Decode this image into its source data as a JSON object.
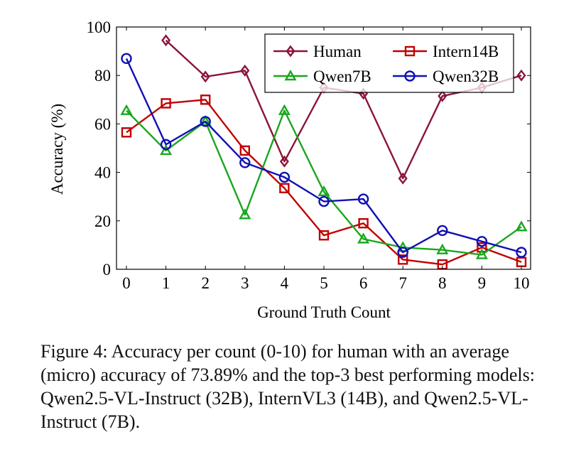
{
  "chart_data": {
    "type": "line",
    "xlabel": "Ground Truth Count",
    "ylabel": "Accuracy (%)",
    "xlim": [
      0,
      10
    ],
    "ylim": [
      0,
      100
    ],
    "x_ticks": [
      "0",
      "1",
      "2",
      "3",
      "4",
      "5",
      "6",
      "7",
      "8",
      "9",
      "10"
    ],
    "y_ticks": [
      "0",
      "20",
      "40",
      "60",
      "80",
      "100"
    ],
    "grid": false,
    "legend_position": "top-right",
    "series": [
      {
        "name": "Human",
        "color": "#8b1538",
        "marker": "diamond",
        "x": [
          1,
          2,
          3,
          4,
          5,
          6,
          7,
          8,
          9,
          10
        ],
        "values": [
          94.5,
          79.5,
          82,
          44.5,
          75,
          72.5,
          37.5,
          71.5,
          75,
          80
        ]
      },
      {
        "name": "Intern14B",
        "color": "#c00000",
        "marker": "square",
        "x": [
          0,
          1,
          2,
          3,
          4,
          5,
          6,
          7,
          8,
          9,
          10
        ],
        "values": [
          56.5,
          68.5,
          70,
          49,
          33.5,
          14,
          19,
          4,
          2,
          9,
          3
        ]
      },
      {
        "name": "Qwen7B",
        "color": "#19a71e",
        "marker": "triangle",
        "x": [
          0,
          1,
          2,
          3,
          4,
          5,
          6,
          7,
          8,
          9,
          10
        ],
        "values": [
          65.5,
          49,
          61,
          22.5,
          65.5,
          32,
          12.5,
          9,
          8,
          6,
          17.5
        ]
      },
      {
        "name": "Qwen32B",
        "color": "#1010b4",
        "marker": "circle",
        "x": [
          0,
          1,
          2,
          3,
          4,
          5,
          6,
          7,
          8,
          9,
          10
        ],
        "values": [
          87,
          51.5,
          61,
          44,
          38,
          28,
          29,
          7,
          16,
          11.5,
          7
        ]
      }
    ]
  },
  "caption": "Figure 4: Accuracy per count (0-10) for human with an average (micro) accuracy of 73.89% and the top-3 best performing models: Qwen2.5-VL-Instruct (32B), InternVL3 (14B), and Qwen2.5-VL-Instruct (7B)."
}
